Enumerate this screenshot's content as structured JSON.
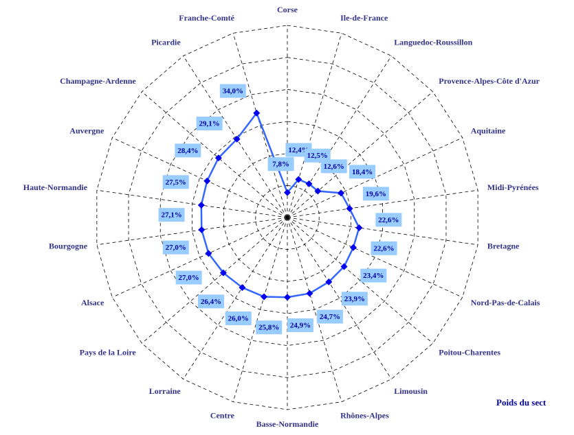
{
  "chart_data": {
    "type": "radar",
    "categories": [
      "Corse",
      "Ile-de-France",
      "Languedoc-Roussillon",
      "Provence-Alpes-Côte d'Azur",
      "Aquitaine",
      "Midi-Pyrénées",
      "Bretagne",
      "Nord-Pas-de-Calais",
      "Poitou-Charentes",
      "Limousin",
      "Rhônes-Alpes",
      "Basse-Normandie",
      "Centre",
      "Lorraine",
      "Pays de la Loire",
      "Alsace",
      "Bourgogne",
      "Haute-Normandie",
      "Auvergne",
      "Champagne-Ardenne",
      "Picardie",
      "Franche-Comté"
    ],
    "values": [
      7.8,
      12.4,
      12.5,
      12.6,
      18.4,
      19.6,
      22.6,
      22.6,
      23.4,
      23.9,
      24.7,
      24.9,
      25.8,
      26.0,
      26.4,
      27.0,
      27.0,
      27.1,
      27.5,
      28.4,
      29.1,
      34.0
    ],
    "value_labels": [
      "7,8%",
      "12,4%",
      "12,5%",
      "12,6%",
      "18,4%",
      "19,6%",
      "22,6%",
      "22,6%",
      "23,4%",
      "23,9%",
      "24,7%",
      "24,9%",
      "25,8%",
      "26,0%",
      "26,4%",
      "27,0%",
      "27,0%",
      "27,1%",
      "27,5%",
      "28,4%",
      "29,1%",
      "34,0%"
    ],
    "color": "#3366ff",
    "marker_color": "#0000ee",
    "ylim": [
      0,
      60
    ],
    "yticks": [
      10,
      20,
      30,
      40,
      50,
      60
    ],
    "grid": true,
    "annotation": "Poids du sect"
  }
}
